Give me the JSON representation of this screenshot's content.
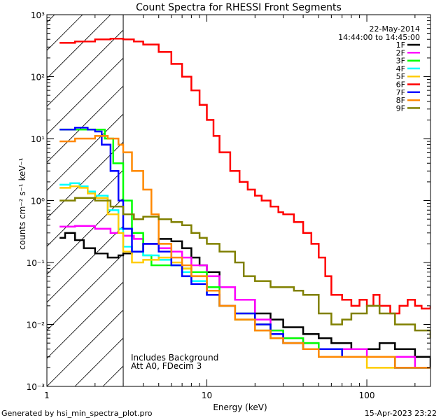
{
  "footer": {
    "generated_by": "Generated by hsi_min_spectra_plot.pro",
    "timestamp": "15-Apr-2023 23:22"
  },
  "chart_data": {
    "type": "line",
    "title": "Count Spectra for RHESSI Front Segments",
    "xlabel": "Energy (keV)",
    "ylabel": "counts cm⁻² s⁻¹ keV⁻¹",
    "xscale": "log",
    "yscale": "log",
    "xlim": [
      1,
      250
    ],
    "ylim": [
      0.001,
      1000
    ],
    "x_tick_labels": [
      "1",
      "10",
      "100"
    ],
    "y_tick_labels": [
      "10⁻³",
      "10⁻²",
      "10⁻¹",
      "10⁰",
      "10¹",
      "10²",
      "10³"
    ],
    "date": "22-May-2014",
    "time_range": "14:44:00 to 14:45:00",
    "annotations": [
      "Includes Background",
      "Att A0, FDecim 3"
    ],
    "hatched_region_upper_energy": 3,
    "legend_position": "top-right",
    "series": [
      {
        "name": "1F",
        "color": "#000000",
        "x": [
          1.2,
          1.3,
          1.5,
          1.7,
          2.0,
          2.4,
          2.8,
          3.0,
          3.4,
          4.0,
          5.0,
          6.0,
          7.0,
          8.0,
          9.0,
          10.0,
          12.0,
          15.0,
          20.0,
          25.0,
          30.0,
          40.0,
          50.0,
          60.0,
          80.0,
          100.0,
          120.0,
          150.0,
          200.0,
          250.0
        ],
        "y": [
          0.25,
          0.3,
          0.23,
          0.17,
          0.14,
          0.12,
          0.13,
          0.14,
          0.15,
          0.2,
          0.24,
          0.22,
          0.17,
          0.12,
          0.09,
          0.07,
          0.04,
          0.025,
          0.015,
          0.012,
          0.009,
          0.007,
          0.006,
          0.005,
          0.004,
          0.004,
          0.005,
          0.004,
          0.003,
          0.002
        ]
      },
      {
        "name": "2F",
        "color": "#ff00ff",
        "x": [
          1.2,
          1.5,
          2.0,
          2.5,
          3.0,
          3.5,
          4.0,
          5.0,
          6.0,
          7.0,
          8.0,
          10.0,
          12.0,
          15.0,
          20.0,
          25.0,
          30.0,
          40.0,
          50.0,
          70.0,
          100.0,
          150.0,
          200.0,
          250.0
        ],
        "y": [
          0.38,
          0.39,
          0.35,
          0.3,
          0.27,
          0.24,
          0.2,
          0.17,
          0.15,
          0.12,
          0.09,
          0.06,
          0.04,
          0.025,
          0.012,
          0.008,
          0.006,
          0.005,
          0.004,
          0.004,
          0.003,
          0.003,
          0.002,
          0.002
        ]
      },
      {
        "name": "3F",
        "color": "#00ff00",
        "x": [
          1.2,
          1.5,
          1.8,
          2.0,
          2.3,
          2.6,
          3.0,
          3.4,
          4.0,
          4.5,
          5.0,
          6.0,
          7.0,
          8.0,
          10.0,
          12.0,
          15.0,
          20.0,
          25.0,
          30.0,
          40.0,
          50.0,
          70.0,
          100.0,
          150.0,
          200.0,
          250.0
        ],
        "y": [
          14.0,
          14.0,
          14.0,
          14.0,
          10.0,
          4.0,
          1.0,
          0.3,
          0.13,
          0.09,
          0.09,
          0.09,
          0.08,
          0.07,
          0.04,
          0.02,
          0.015,
          0.01,
          0.008,
          0.006,
          0.005,
          0.004,
          0.003,
          0.003,
          0.002,
          0.002,
          0.002
        ]
      },
      {
        "name": "4F",
        "color": "#00ffff",
        "x": [
          1.2,
          1.4,
          1.6,
          1.8,
          2.0,
          2.4,
          2.8,
          3.0,
          3.4,
          4.0,
          5.0,
          6.0,
          7.0,
          8.0,
          10.0,
          12.0,
          15.0,
          20.0,
          25.0,
          30.0,
          40.0,
          50.0,
          70.0,
          100.0,
          150.0,
          200.0,
          250.0
        ],
        "y": [
          1.8,
          1.9,
          1.7,
          1.4,
          1.2,
          0.7,
          0.35,
          0.18,
          0.15,
          0.13,
          0.11,
          0.09,
          0.07,
          0.05,
          0.03,
          0.02,
          0.012,
          0.008,
          0.006,
          0.005,
          0.004,
          0.003,
          0.003,
          0.003,
          0.002,
          0.002,
          0.002
        ]
      },
      {
        "name": "5F",
        "color": "#ffcc00",
        "x": [
          1.2,
          1.4,
          1.6,
          1.8,
          2.0,
          2.4,
          2.8,
          3.0,
          3.4,
          4.0,
          5.0,
          6.0,
          7.0,
          8.0,
          10.0,
          12.0,
          15.0,
          20.0,
          25.0,
          30.0,
          40.0,
          50.0,
          70.0,
          100.0,
          150.0,
          200.0,
          250.0
        ],
        "y": [
          1.6,
          1.7,
          1.6,
          1.3,
          1.1,
          0.6,
          0.3,
          0.15,
          0.1,
          0.11,
          0.12,
          0.1,
          0.08,
          0.06,
          0.035,
          0.02,
          0.012,
          0.008,
          0.006,
          0.005,
          0.004,
          0.003,
          0.003,
          0.002,
          0.002,
          0.002,
          0.002
        ]
      },
      {
        "name": "6F",
        "color": "#ff0000",
        "x": [
          1.2,
          1.5,
          2.0,
          2.5,
          3.0,
          3.5,
          4.0,
          5.0,
          6.0,
          7.0,
          8.0,
          9.0,
          10.0,
          11.0,
          12.0,
          14.0,
          16.0,
          18.0,
          20.0,
          22.0,
          25.0,
          28.0,
          30.0,
          35.0,
          40.0,
          45.0,
          50.0,
          55.0,
          60.0,
          70.0,
          80.0,
          90.0,
          100.0,
          110.0,
          120.0,
          140.0,
          160.0,
          180.0,
          200.0,
          220.0,
          250.0
        ],
        "y": [
          350.0,
          370.0,
          400.0,
          410.0,
          400.0,
          370.0,
          330.0,
          250.0,
          160.0,
          100.0,
          60.0,
          35.0,
          20.0,
          11.0,
          6.0,
          3.0,
          2.0,
          1.5,
          1.2,
          1.0,
          0.8,
          0.65,
          0.6,
          0.45,
          0.3,
          0.2,
          0.12,
          0.06,
          0.03,
          0.025,
          0.02,
          0.025,
          0.02,
          0.03,
          0.02,
          0.015,
          0.02,
          0.025,
          0.02,
          0.018,
          0.02
        ]
      },
      {
        "name": "7F",
        "color": "#0000ff",
        "x": [
          1.2,
          1.5,
          1.8,
          2.0,
          2.2,
          2.5,
          2.8,
          3.0,
          3.4,
          4.0,
          5.0,
          6.0,
          7.0,
          8.0,
          10.0,
          12.0,
          15.0,
          20.0,
          25.0,
          30.0,
          40.0,
          50.0,
          70.0,
          100.0,
          150.0,
          200.0,
          250.0
        ],
        "y": [
          14.0,
          15.0,
          14.0,
          13.0,
          8.0,
          3.0,
          1.0,
          0.35,
          0.15,
          0.2,
          0.15,
          0.09,
          0.06,
          0.045,
          0.03,
          0.02,
          0.015,
          0.01,
          0.007,
          0.005,
          0.004,
          0.004,
          0.003,
          0.003,
          0.002,
          0.002,
          0.002
        ]
      },
      {
        "name": "8F",
        "color": "#ff8800",
        "x": [
          1.2,
          1.5,
          2.0,
          2.4,
          2.8,
          3.0,
          3.4,
          4.0,
          4.5,
          5.0,
          6.0,
          7.0,
          8.0,
          10.0,
          12.0,
          15.0,
          20.0,
          25.0,
          30.0,
          40.0,
          50.0,
          70.0,
          100.0,
          150.0,
          200.0,
          250.0
        ],
        "y": [
          9.0,
          10.0,
          11.0,
          10.0,
          8.0,
          6.0,
          3.0,
          1.5,
          0.6,
          0.2,
          0.12,
          0.09,
          0.06,
          0.035,
          0.02,
          0.012,
          0.008,
          0.006,
          0.005,
          0.004,
          0.003,
          0.003,
          0.003,
          0.002,
          0.002,
          0.002
        ]
      },
      {
        "name": "9F",
        "color": "#808000",
        "x": [
          1.2,
          1.5,
          2.0,
          2.5,
          3.0,
          3.5,
          4.0,
          5.0,
          6.0,
          7.0,
          8.0,
          9.0,
          10.0,
          12.0,
          15.0,
          17.0,
          20.0,
          25.0,
          30.0,
          35.0,
          40.0,
          50.0,
          60.0,
          70.0,
          80.0,
          100.0,
          120.0,
          150.0,
          200.0,
          250.0
        ],
        "y": [
          1.0,
          1.1,
          1.0,
          0.8,
          0.6,
          0.5,
          0.55,
          0.5,
          0.45,
          0.4,
          0.3,
          0.25,
          0.2,
          0.15,
          0.1,
          0.06,
          0.05,
          0.04,
          0.04,
          0.035,
          0.03,
          0.015,
          0.01,
          0.012,
          0.015,
          0.02,
          0.015,
          0.01,
          0.008,
          0.006
        ]
      }
    ]
  }
}
